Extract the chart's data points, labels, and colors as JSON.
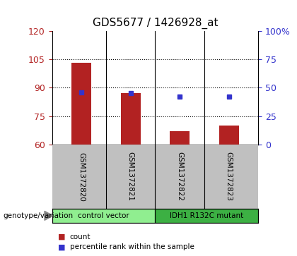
{
  "title": "GDS5677 / 1426928_at",
  "samples": [
    "GSM1372820",
    "GSM1372821",
    "GSM1372822",
    "GSM1372823"
  ],
  "counts": [
    103,
    87,
    67,
    70
  ],
  "percentile_ranks": [
    46,
    45,
    42,
    42
  ],
  "ylim_left": [
    60,
    120
  ],
  "ylim_right": [
    0,
    100
  ],
  "yticks_left": [
    60,
    75,
    90,
    105,
    120
  ],
  "yticks_right": [
    0,
    25,
    50,
    75,
    100
  ],
  "ytick_labels_right": [
    "0",
    "25",
    "50",
    "75",
    "100%"
  ],
  "bar_color": "#b22222",
  "dot_color": "#3333cc",
  "grid_color": "#000000",
  "bar_width": 0.4,
  "groups": [
    {
      "label": "control vector",
      "color": "#90ee90"
    },
    {
      "label": "IDH1 R132C mutant",
      "color": "#3cb043"
    }
  ],
  "genotype_label": "genotype/variation",
  "legend_count_label": "count",
  "legend_percentile_label": "percentile rank within the sample",
  "bg_plot": "#ffffff",
  "bg_xtick": "#c0c0c0",
  "title_fontsize": 11,
  "axis_fontsize": 9,
  "label_fontsize": 8
}
